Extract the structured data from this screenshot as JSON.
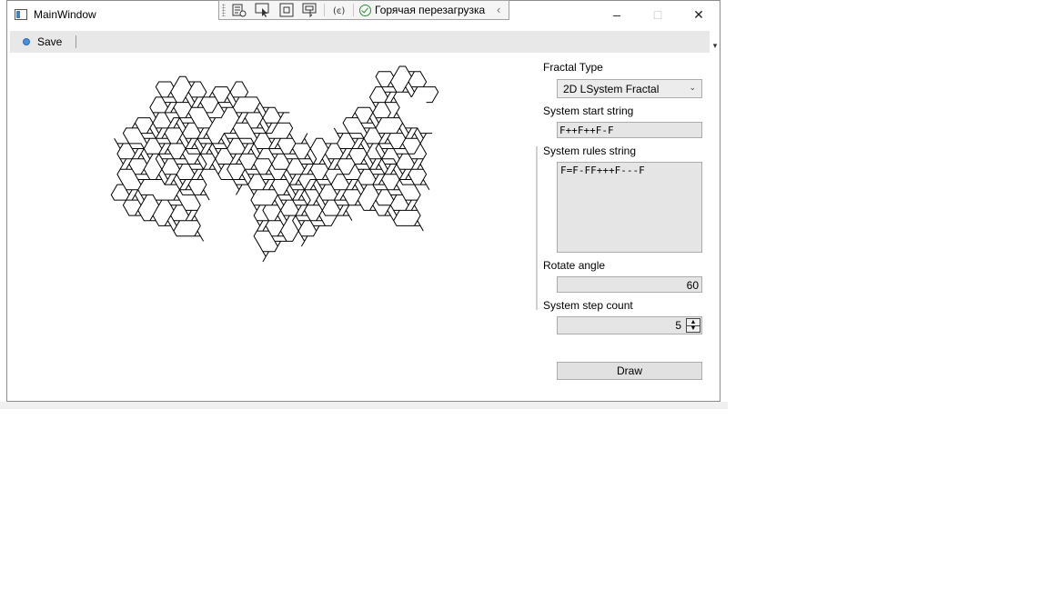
{
  "window": {
    "title": "MainWindow",
    "controls": {
      "minimize": "–",
      "maximize": "□",
      "close": "✕"
    }
  },
  "dev_toolbar": {
    "hot_reload_label": "Горячая перезагрузка",
    "icons": [
      "live-visual-tree-icon",
      "select-element-icon",
      "display-layout-adorners-icon",
      "track-focus-icon",
      "binding-failures-icon"
    ]
  },
  "toolbar": {
    "save_label": "Save",
    "overflow_glyph": "▾"
  },
  "panel": {
    "fractal_type_label": "Fractal Type",
    "fractal_type_value": "2D LSystem Fractal",
    "start_string_label": "System start string",
    "start_string_value": "F++F++F-F",
    "rules_label": "System rules string",
    "rules_value": "F=F-FF+++F---F",
    "angle_label": "Rotate angle",
    "angle_value": "60",
    "steps_label": "System step count",
    "steps_value": "5",
    "draw_label": "Draw"
  },
  "colors": {
    "accent": "#4a90d9",
    "toolbar_bg": "#e8e8e8",
    "field_bg": "#e5e5e5",
    "hot_reload_ok": "#2e8b3a"
  }
}
